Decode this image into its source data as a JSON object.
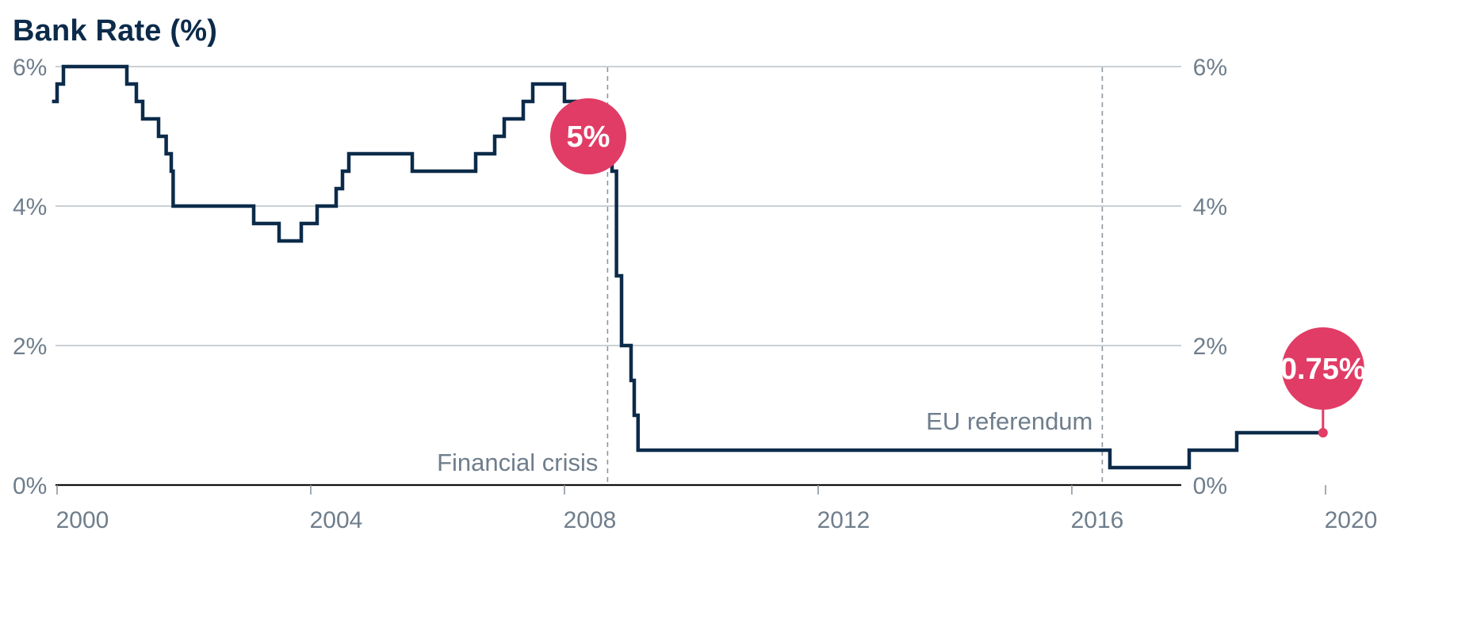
{
  "chart_data": {
    "type": "line",
    "title": "Bank Rate (%)",
    "step": true,
    "x_ticks": [
      "2000",
      "2004",
      "2008",
      "2012",
      "2016",
      "2020"
    ],
    "y_ticks": [
      "0%",
      "2%",
      "4%",
      "6%"
    ],
    "xlim": [
      1999.9,
      2021.0
    ],
    "ylim": [
      0,
      6
    ],
    "grid": "horizontal",
    "right_axis_labels": true,
    "series": [
      {
        "color": "#0c2b4a",
        "x": [
          1999.92,
          2000.0,
          2000.1,
          2001.1,
          2001.25,
          2001.35,
          2001.6,
          2001.72,
          2001.8,
          2001.83,
          2003.1,
          2003.5,
          2003.85,
          2004.1,
          2004.4,
          2004.5,
          2004.6,
          2005.6,
          2006.6,
          2006.9,
          2007.05,
          2007.35,
          2007.5,
          2008.0,
          2008.2,
          2008.3,
          2008.75,
          2008.82,
          2008.9,
          2009.05,
          2009.1,
          2009.16,
          2016.6,
          2017.85,
          2018.6,
          2019.96
        ],
        "y": [
          5.5,
          5.75,
          6.0,
          5.75,
          5.5,
          5.25,
          5.0,
          4.75,
          4.5,
          4.0,
          3.75,
          3.5,
          3.75,
          4.0,
          4.25,
          4.5,
          4.75,
          4.5,
          4.75,
          5.0,
          5.25,
          5.5,
          5.75,
          5.5,
          5.25,
          5.0,
          4.5,
          3.0,
          2.0,
          1.5,
          1.0,
          0.5,
          0.25,
          0.5,
          0.75,
          0.75
        ]
      }
    ],
    "events": [
      {
        "x": 2008.68,
        "label": "Financial crisis"
      },
      {
        "x": 2016.48,
        "label": "EU referendum"
      }
    ],
    "callouts": [
      {
        "x": 2008.75,
        "y": 5.0,
        "label": "5%",
        "color": "#e13c65"
      },
      {
        "x": 2019.96,
        "y": 0.75,
        "label": "0.75%",
        "color": "#e13c65"
      }
    ]
  }
}
